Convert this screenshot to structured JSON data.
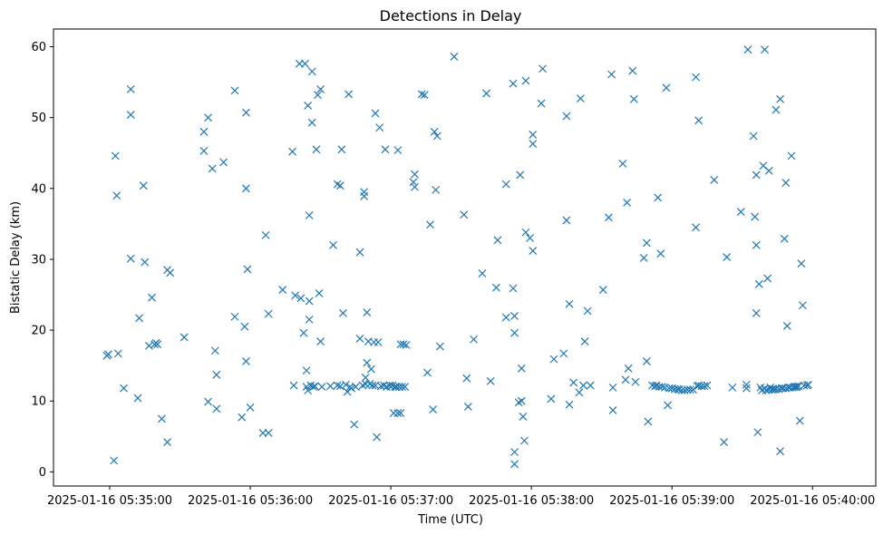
{
  "chart_data": {
    "type": "scatter",
    "title": "Detections in Delay",
    "xlabel": "Time (UTC)",
    "ylabel": "Bistatic Delay (km)",
    "marker": "x",
    "color": "#1f77b4",
    "grid": false,
    "x_unit": "minutes after 2025-01-16 05:34:00",
    "xlim": [
      0.6,
      6.45
    ],
    "ylim": [
      -2,
      62.5
    ],
    "x_ticks": [
      {
        "value": 1,
        "label": "2025-01-16 05:35:00"
      },
      {
        "value": 2,
        "label": "2025-01-16 05:36:00"
      },
      {
        "value": 3,
        "label": "2025-01-16 05:37:00"
      },
      {
        "value": 4,
        "label": "2025-01-16 05:38:00"
      },
      {
        "value": 5,
        "label": "2025-01-16 05:39:00"
      },
      {
        "value": 6,
        "label": "2025-01-16 05:40:00"
      }
    ],
    "y_ticks": [
      {
        "value": 0,
        "label": "0"
      },
      {
        "value": 10,
        "label": "10"
      },
      {
        "value": 20,
        "label": "20"
      },
      {
        "value": 30,
        "label": "30"
      },
      {
        "value": 40,
        "label": "40"
      },
      {
        "value": 50,
        "label": "50"
      },
      {
        "value": 60,
        "label": "60"
      }
    ],
    "points": [
      [
        0.98,
        16.4
      ],
      [
        0.99,
        16.6
      ],
      [
        1.03,
        1.6
      ],
      [
        1.04,
        44.6
      ],
      [
        1.05,
        39.0
      ],
      [
        1.06,
        16.7
      ],
      [
        1.1,
        11.8
      ],
      [
        1.15,
        54.0
      ],
      [
        1.15,
        50.4
      ],
      [
        1.15,
        30.1
      ],
      [
        1.2,
        10.4
      ],
      [
        1.21,
        21.7
      ],
      [
        1.24,
        40.4
      ],
      [
        1.25,
        29.6
      ],
      [
        1.28,
        17.8
      ],
      [
        1.3,
        24.6
      ],
      [
        1.32,
        18.0
      ],
      [
        1.33,
        18.2
      ],
      [
        1.34,
        18.0
      ],
      [
        1.37,
        7.5
      ],
      [
        1.41,
        4.2
      ],
      [
        1.41,
        28.5
      ],
      [
        1.43,
        28.1
      ],
      [
        1.53,
        19.0
      ],
      [
        1.67,
        48.0
      ],
      [
        1.67,
        45.3
      ],
      [
        1.7,
        50.0
      ],
      [
        1.7,
        9.9
      ],
      [
        1.73,
        42.8
      ],
      [
        1.75,
        17.1
      ],
      [
        1.76,
        13.7
      ],
      [
        1.76,
        8.9
      ],
      [
        1.81,
        43.7
      ],
      [
        1.89,
        53.8
      ],
      [
        1.89,
        21.9
      ],
      [
        1.94,
        7.7
      ],
      [
        1.96,
        20.5
      ],
      [
        1.97,
        50.7
      ],
      [
        1.97,
        40.0
      ],
      [
        1.97,
        15.6
      ],
      [
        1.98,
        28.6
      ],
      [
        2.0,
        9.1
      ],
      [
        2.09,
        5.5
      ],
      [
        2.11,
        33.4
      ],
      [
        2.13,
        5.5
      ],
      [
        2.13,
        22.3
      ],
      [
        2.23,
        25.7
      ],
      [
        2.3,
        45.2
      ],
      [
        2.31,
        12.2
      ],
      [
        2.32,
        24.9
      ],
      [
        2.35,
        57.6
      ],
      [
        2.36,
        24.5
      ],
      [
        2.38,
        19.6
      ],
      [
        2.39,
        57.6
      ],
      [
        2.4,
        14.3
      ],
      [
        2.4,
        12.0
      ],
      [
        2.41,
        11.5
      ],
      [
        2.41,
        51.7
      ],
      [
        2.42,
        36.2
      ],
      [
        2.42,
        24.1
      ],
      [
        2.42,
        21.5
      ],
      [
        2.43,
        12.2
      ],
      [
        2.44,
        56.5
      ],
      [
        2.44,
        49.3
      ],
      [
        2.45,
        12.0
      ],
      [
        2.46,
        12.1
      ],
      [
        2.47,
        45.5
      ],
      [
        2.48,
        53.2
      ],
      [
        2.49,
        25.2
      ],
      [
        2.5,
        18.4
      ],
      [
        2.5,
        54.0
      ],
      [
        2.51,
        12.0
      ],
      [
        2.57,
        12.1
      ],
      [
        2.59,
        32.0
      ],
      [
        2.62,
        12.2
      ],
      [
        2.62,
        40.6
      ],
      [
        2.64,
        40.4
      ],
      [
        2.64,
        12.1
      ],
      [
        2.65,
        45.5
      ],
      [
        2.66,
        22.4
      ],
      [
        2.68,
        12.3
      ],
      [
        2.69,
        11.3
      ],
      [
        2.7,
        53.3
      ],
      [
        2.71,
        12.0
      ],
      [
        2.72,
        11.8
      ],
      [
        2.74,
        6.7
      ],
      [
        2.75,
        12.0
      ],
      [
        2.78,
        18.8
      ],
      [
        2.78,
        31.0
      ],
      [
        2.8,
        12.2
      ],
      [
        2.81,
        38.9
      ],
      [
        2.81,
        39.5
      ],
      [
        2.82,
        13.3
      ],
      [
        2.82,
        12.4
      ],
      [
        2.83,
        22.5
      ],
      [
        2.83,
        15.4
      ],
      [
        2.84,
        18.4
      ],
      [
        2.85,
        12.4
      ],
      [
        2.86,
        14.5
      ],
      [
        2.87,
        12.2
      ],
      [
        2.88,
        18.3
      ],
      [
        2.89,
        50.6
      ],
      [
        2.89,
        12.2
      ],
      [
        2.9,
        4.9
      ],
      [
        2.91,
        18.3
      ],
      [
        2.92,
        48.6
      ],
      [
        2.93,
        12.1
      ],
      [
        2.95,
        12.2
      ],
      [
        2.96,
        45.5
      ],
      [
        2.97,
        12.0
      ],
      [
        2.99,
        12.2
      ],
      [
        3.0,
        12.0
      ],
      [
        3.01,
        12.2
      ],
      [
        3.02,
        8.3
      ],
      [
        3.03,
        12.0
      ],
      [
        3.04,
        12.0
      ],
      [
        3.05,
        45.4
      ],
      [
        3.05,
        8.3
      ],
      [
        3.06,
        12.0
      ],
      [
        3.07,
        18.0
      ],
      [
        3.07,
        8.3
      ],
      [
        3.08,
        12.0
      ],
      [
        3.09,
        18.0
      ],
      [
        3.1,
        12.0
      ],
      [
        3.11,
        17.9
      ],
      [
        3.16,
        40.9
      ],
      [
        3.17,
        42.0
      ],
      [
        3.17,
        40.2
      ],
      [
        3.22,
        53.3
      ],
      [
        3.24,
        53.2
      ],
      [
        3.26,
        14.0
      ],
      [
        3.28,
        34.9
      ],
      [
        3.3,
        8.8
      ],
      [
        3.31,
        48.0
      ],
      [
        3.32,
        39.8
      ],
      [
        3.33,
        47.4
      ],
      [
        3.35,
        17.7
      ],
      [
        3.45,
        58.6
      ],
      [
        3.52,
        36.3
      ],
      [
        3.54,
        13.2
      ],
      [
        3.55,
        9.2
      ],
      [
        3.59,
        18.7
      ],
      [
        3.65,
        28.0
      ],
      [
        3.68,
        53.4
      ],
      [
        3.71,
        12.8
      ],
      [
        3.75,
        26.0
      ],
      [
        3.76,
        32.7
      ],
      [
        3.82,
        40.6
      ],
      [
        3.82,
        21.8
      ],
      [
        3.87,
        54.8
      ],
      [
        3.87,
        25.9
      ],
      [
        3.88,
        22.0
      ],
      [
        3.88,
        19.6
      ],
      [
        3.88,
        2.8
      ],
      [
        3.88,
        1.1
      ],
      [
        3.91,
        9.8
      ],
      [
        3.92,
        41.9
      ],
      [
        3.93,
        14.6
      ],
      [
        3.93,
        10.0
      ],
      [
        3.94,
        7.8
      ],
      [
        3.95,
        4.4
      ],
      [
        3.96,
        55.2
      ],
      [
        3.96,
        33.8
      ],
      [
        3.99,
        33.0
      ],
      [
        4.01,
        46.3
      ],
      [
        4.01,
        47.6
      ],
      [
        4.01,
        31.2
      ],
      [
        4.07,
        52.0
      ],
      [
        4.08,
        56.9
      ],
      [
        4.14,
        10.3
      ],
      [
        4.16,
        15.9
      ],
      [
        4.23,
        16.7
      ],
      [
        4.25,
        50.2
      ],
      [
        4.25,
        35.5
      ],
      [
        4.27,
        23.7
      ],
      [
        4.27,
        9.5
      ],
      [
        4.3,
        12.6
      ],
      [
        4.34,
        11.2
      ],
      [
        4.35,
        52.7
      ],
      [
        4.37,
        12.2
      ],
      [
        4.38,
        18.4
      ],
      [
        4.4,
        22.7
      ],
      [
        4.42,
        12.2
      ],
      [
        4.51,
        25.7
      ],
      [
        4.55,
        35.9
      ],
      [
        4.57,
        56.1
      ],
      [
        4.58,
        8.7
      ],
      [
        4.58,
        11.9
      ],
      [
        4.65,
        43.5
      ],
      [
        4.67,
        13.0
      ],
      [
        4.68,
        38.0
      ],
      [
        4.69,
        14.6
      ],
      [
        4.72,
        56.6
      ],
      [
        4.73,
        52.6
      ],
      [
        4.74,
        12.7
      ],
      [
        4.8,
        30.2
      ],
      [
        4.82,
        32.3
      ],
      [
        4.82,
        15.6
      ],
      [
        4.83,
        7.1
      ],
      [
        4.86,
        12.2
      ],
      [
        4.88,
        12.1
      ],
      [
        4.89,
        12.2
      ],
      [
        4.9,
        38.7
      ],
      [
        4.91,
        12.0
      ],
      [
        4.92,
        30.8
      ],
      [
        4.93,
        12.0
      ],
      [
        4.95,
        11.9
      ],
      [
        4.96,
        54.2
      ],
      [
        4.97,
        9.4
      ],
      [
        4.98,
        11.8
      ],
      [
        5.0,
        11.8
      ],
      [
        5.02,
        11.7
      ],
      [
        5.04,
        11.7
      ],
      [
        5.05,
        11.6
      ],
      [
        5.07,
        11.5
      ],
      [
        5.09,
        11.5
      ],
      [
        5.11,
        11.6
      ],
      [
        5.13,
        11.6
      ],
      [
        5.15,
        11.6
      ],
      [
        5.17,
        34.5
      ],
      [
        5.17,
        55.7
      ],
      [
        5.18,
        12.1
      ],
      [
        5.19,
        49.6
      ],
      [
        5.19,
        12.2
      ],
      [
        5.21,
        12.1
      ],
      [
        5.23,
        12.1
      ],
      [
        5.25,
        12.2
      ],
      [
        5.3,
        41.2
      ],
      [
        5.37,
        4.2
      ],
      [
        5.39,
        30.3
      ],
      [
        5.43,
        11.9
      ],
      [
        5.49,
        36.7
      ],
      [
        5.53,
        12.3
      ],
      [
        5.53,
        11.8
      ],
      [
        5.54,
        59.6
      ],
      [
        5.58,
        47.4
      ],
      [
        5.59,
        36.0
      ],
      [
        5.6,
        41.9
      ],
      [
        5.6,
        32.0
      ],
      [
        5.6,
        22.4
      ],
      [
        5.61,
        5.6
      ],
      [
        5.62,
        26.5
      ],
      [
        5.63,
        11.9
      ],
      [
        5.64,
        11.5
      ],
      [
        5.65,
        43.2
      ],
      [
        5.66,
        59.6
      ],
      [
        5.66,
        11.8
      ],
      [
        5.67,
        11.5
      ],
      [
        5.68,
        27.3
      ],
      [
        5.69,
        11.6
      ],
      [
        5.69,
        42.5
      ],
      [
        5.7,
        11.9
      ],
      [
        5.71,
        11.6
      ],
      [
        5.72,
        11.7
      ],
      [
        5.73,
        11.6
      ],
      [
        5.74,
        51.1
      ],
      [
        5.74,
        11.7
      ],
      [
        5.76,
        11.7
      ],
      [
        5.77,
        52.6
      ],
      [
        5.77,
        2.9
      ],
      [
        5.78,
        11.8
      ],
      [
        5.79,
        11.8
      ],
      [
        5.8,
        32.9
      ],
      [
        5.81,
        11.8
      ],
      [
        5.81,
        40.8
      ],
      [
        5.82,
        20.6
      ],
      [
        5.83,
        11.9
      ],
      [
        5.84,
        11.9
      ],
      [
        5.85,
        44.6
      ],
      [
        5.86,
        11.9
      ],
      [
        5.87,
        12.0
      ],
      [
        5.88,
        12.0
      ],
      [
        5.89,
        12.0
      ],
      [
        5.9,
        12.1
      ],
      [
        5.91,
        7.2
      ],
      [
        5.92,
        29.4
      ],
      [
        5.93,
        23.5
      ],
      [
        5.94,
        12.2
      ],
      [
        5.96,
        12.2
      ],
      [
        5.97,
        12.3
      ]
    ]
  }
}
